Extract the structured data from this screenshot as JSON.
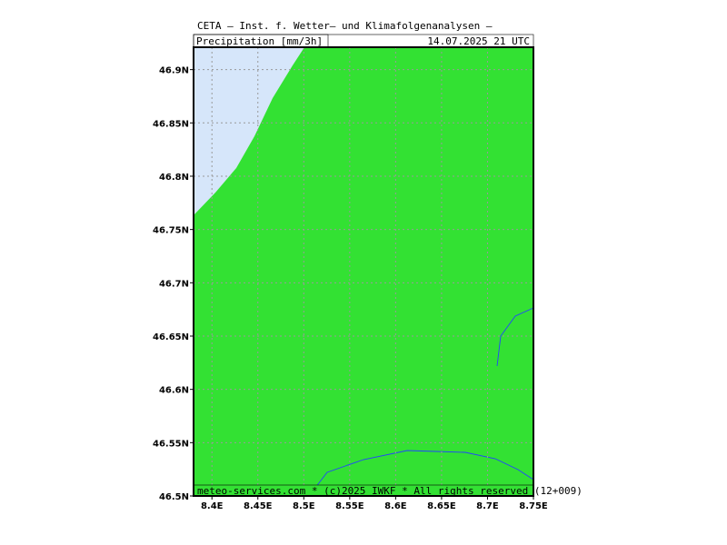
{
  "header": {
    "title": "CETA — Inst. f. Wetter— und Klimafolgenanalysen —",
    "variable": "Precipitation [mm/3h]",
    "valid_time": "14.07.2025 21 UTC"
  },
  "footer": "meteo-services.com * (c)2025 IWKF * All rights reserved (12+009)",
  "map": {
    "xlim": [
      8.38,
      8.75
    ],
    "ylim": [
      46.5,
      46.921
    ],
    "xticks": [
      {
        "value": 8.4,
        "label": "8.4E"
      },
      {
        "value": 8.45,
        "label": "8.45E"
      },
      {
        "value": 8.5,
        "label": "8.5E"
      },
      {
        "value": 8.55,
        "label": "8.55E"
      },
      {
        "value": 8.6,
        "label": "8.6E"
      },
      {
        "value": 8.65,
        "label": "8.65E"
      },
      {
        "value": 8.7,
        "label": "8.7E"
      },
      {
        "value": 8.75,
        "label": "8.75E"
      }
    ],
    "yticks": [
      {
        "value": 46.5,
        "label": "46.5N"
      },
      {
        "value": 46.55,
        "label": "46.55N"
      },
      {
        "value": 46.6,
        "label": "46.6N"
      },
      {
        "value": 46.65,
        "label": "46.65N"
      },
      {
        "value": 46.7,
        "label": "46.7N"
      },
      {
        "value": 46.75,
        "label": "46.75N"
      },
      {
        "value": 46.8,
        "label": "46.8N"
      },
      {
        "value": 46.85,
        "label": "46.85N"
      },
      {
        "value": 46.9,
        "label": "46.9N"
      }
    ],
    "grid": true
  }
}
